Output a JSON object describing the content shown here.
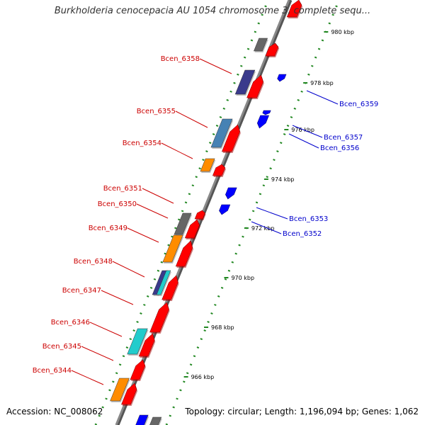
{
  "title": "Burkholderia cenocepacia AU 1054 chromosome 3, complete sequ...",
  "footer": {
    "accession": "Accession: NC_008062",
    "summary": "Topology: circular; Length: 1,196,094 bp; Genes: 1,062"
  },
  "colors": {
    "forward_label": "#cc0000",
    "reverse_label": "#0000cc",
    "backbone": "#888888",
    "tick_dots": "#228822",
    "gene_red": "#ff0000",
    "gene_blue": "#0000ff",
    "gene_gray": "#666666",
    "gene_orange": "#ff8c00",
    "gene_navy": "#3a3a8c",
    "gene_steel": "#4682b4",
    "gene_cyan": "#22cccc"
  },
  "scale_ticks": [
    {
      "label": "980 kbp",
      "kbp": 980
    },
    {
      "label": "978 kbp",
      "kbp": 978
    },
    {
      "label": "976 kbp",
      "kbp": 976
    },
    {
      "label": "974 kbp",
      "kbp": 974
    },
    {
      "label": "972 kbp",
      "kbp": 972
    },
    {
      "label": "970 kbp",
      "kbp": 970
    },
    {
      "label": "968 kbp",
      "kbp": 968
    },
    {
      "label": "966 kbp",
      "kbp": 966
    }
  ],
  "forward_labels": [
    "Bcen_6358",
    "Bcen_6355",
    "Bcen_6354",
    "Bcen_6351",
    "Bcen_6350",
    "Bcen_6349",
    "Bcen_6348",
    "Bcen_6347",
    "Bcen_6346",
    "Bcen_6345",
    "Bcen_6344"
  ],
  "reverse_labels": [
    "Bcen_6359",
    "Bcen_6357",
    "Bcen_6356",
    "Bcen_6353",
    "Bcen_6352"
  ]
}
